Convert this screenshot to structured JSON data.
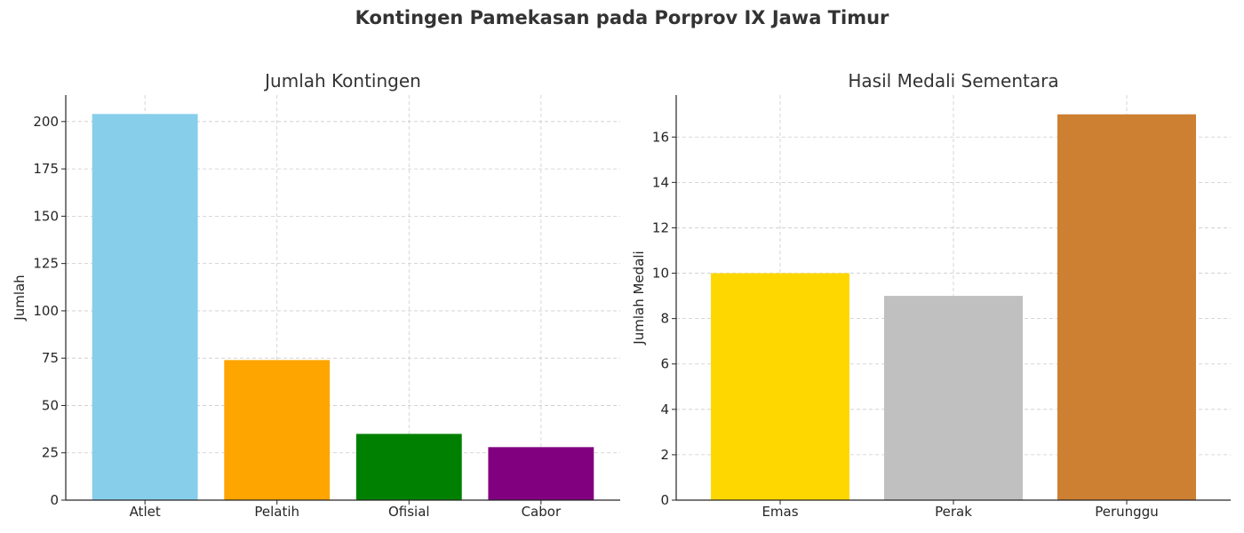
{
  "figure": {
    "title": "Kontingen Pamekasan pada Porprov IX Jawa Timur"
  },
  "chart_data": [
    {
      "type": "bar",
      "title": "Jumlah Kontingen",
      "xlabel": "",
      "ylabel": "Jumlah",
      "categories": [
        "Atlet",
        "Pelatih",
        "Ofisial",
        "Cabor"
      ],
      "values": [
        204,
        74,
        35,
        28
      ],
      "colors": [
        "#87CEEB",
        "#FFA500",
        "#008000",
        "#800080"
      ],
      "ylim": [
        0,
        214
      ],
      "yticks": [
        0,
        25,
        50,
        75,
        100,
        125,
        150,
        175,
        200
      ],
      "grid": true
    },
    {
      "type": "bar",
      "title": "Hasil Medali Sementara",
      "xlabel": "",
      "ylabel": "Jumlah Medali",
      "categories": [
        "Emas",
        "Perak",
        "Perunggu"
      ],
      "values": [
        10,
        9,
        17
      ],
      "colors": [
        "#FFD700",
        "#C0C0C0",
        "#CD7F32"
      ],
      "ylim": [
        0,
        17.85
      ],
      "yticks": [
        0,
        2,
        4,
        6,
        8,
        10,
        12,
        14,
        16
      ],
      "grid": true
    }
  ]
}
